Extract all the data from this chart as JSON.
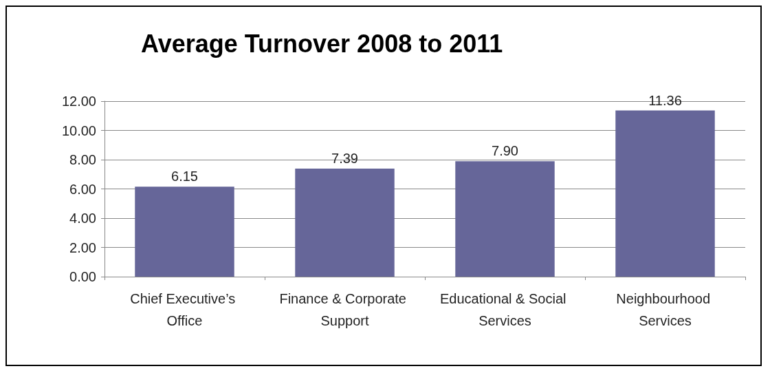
{
  "chart_data": {
    "type": "bar",
    "title": "Average Turnover 2008 to 2011",
    "categories": [
      "Chief Executive’s Office",
      "Finance & Corporate Support",
      "Educational & Social Services",
      "Neighbourhood Services"
    ],
    "values": [
      6.15,
      7.39,
      7.9,
      11.36
    ],
    "value_labels": [
      "6.15",
      "7.39",
      "7.90",
      "11.36"
    ],
    "color": "#666699",
    "ylim": [
      0,
      12
    ],
    "yticks": [
      {
        "value": 0,
        "label": "0.00"
      },
      {
        "value": 2,
        "label": "2.00"
      },
      {
        "value": 4,
        "label": "4.00"
      },
      {
        "value": 6,
        "label": "6.00"
      },
      {
        "value": 8,
        "label": "8.00"
      },
      {
        "value": 10,
        "label": "10.00"
      },
      {
        "value": 12,
        "label": "12.00"
      }
    ],
    "grid": "y"
  }
}
